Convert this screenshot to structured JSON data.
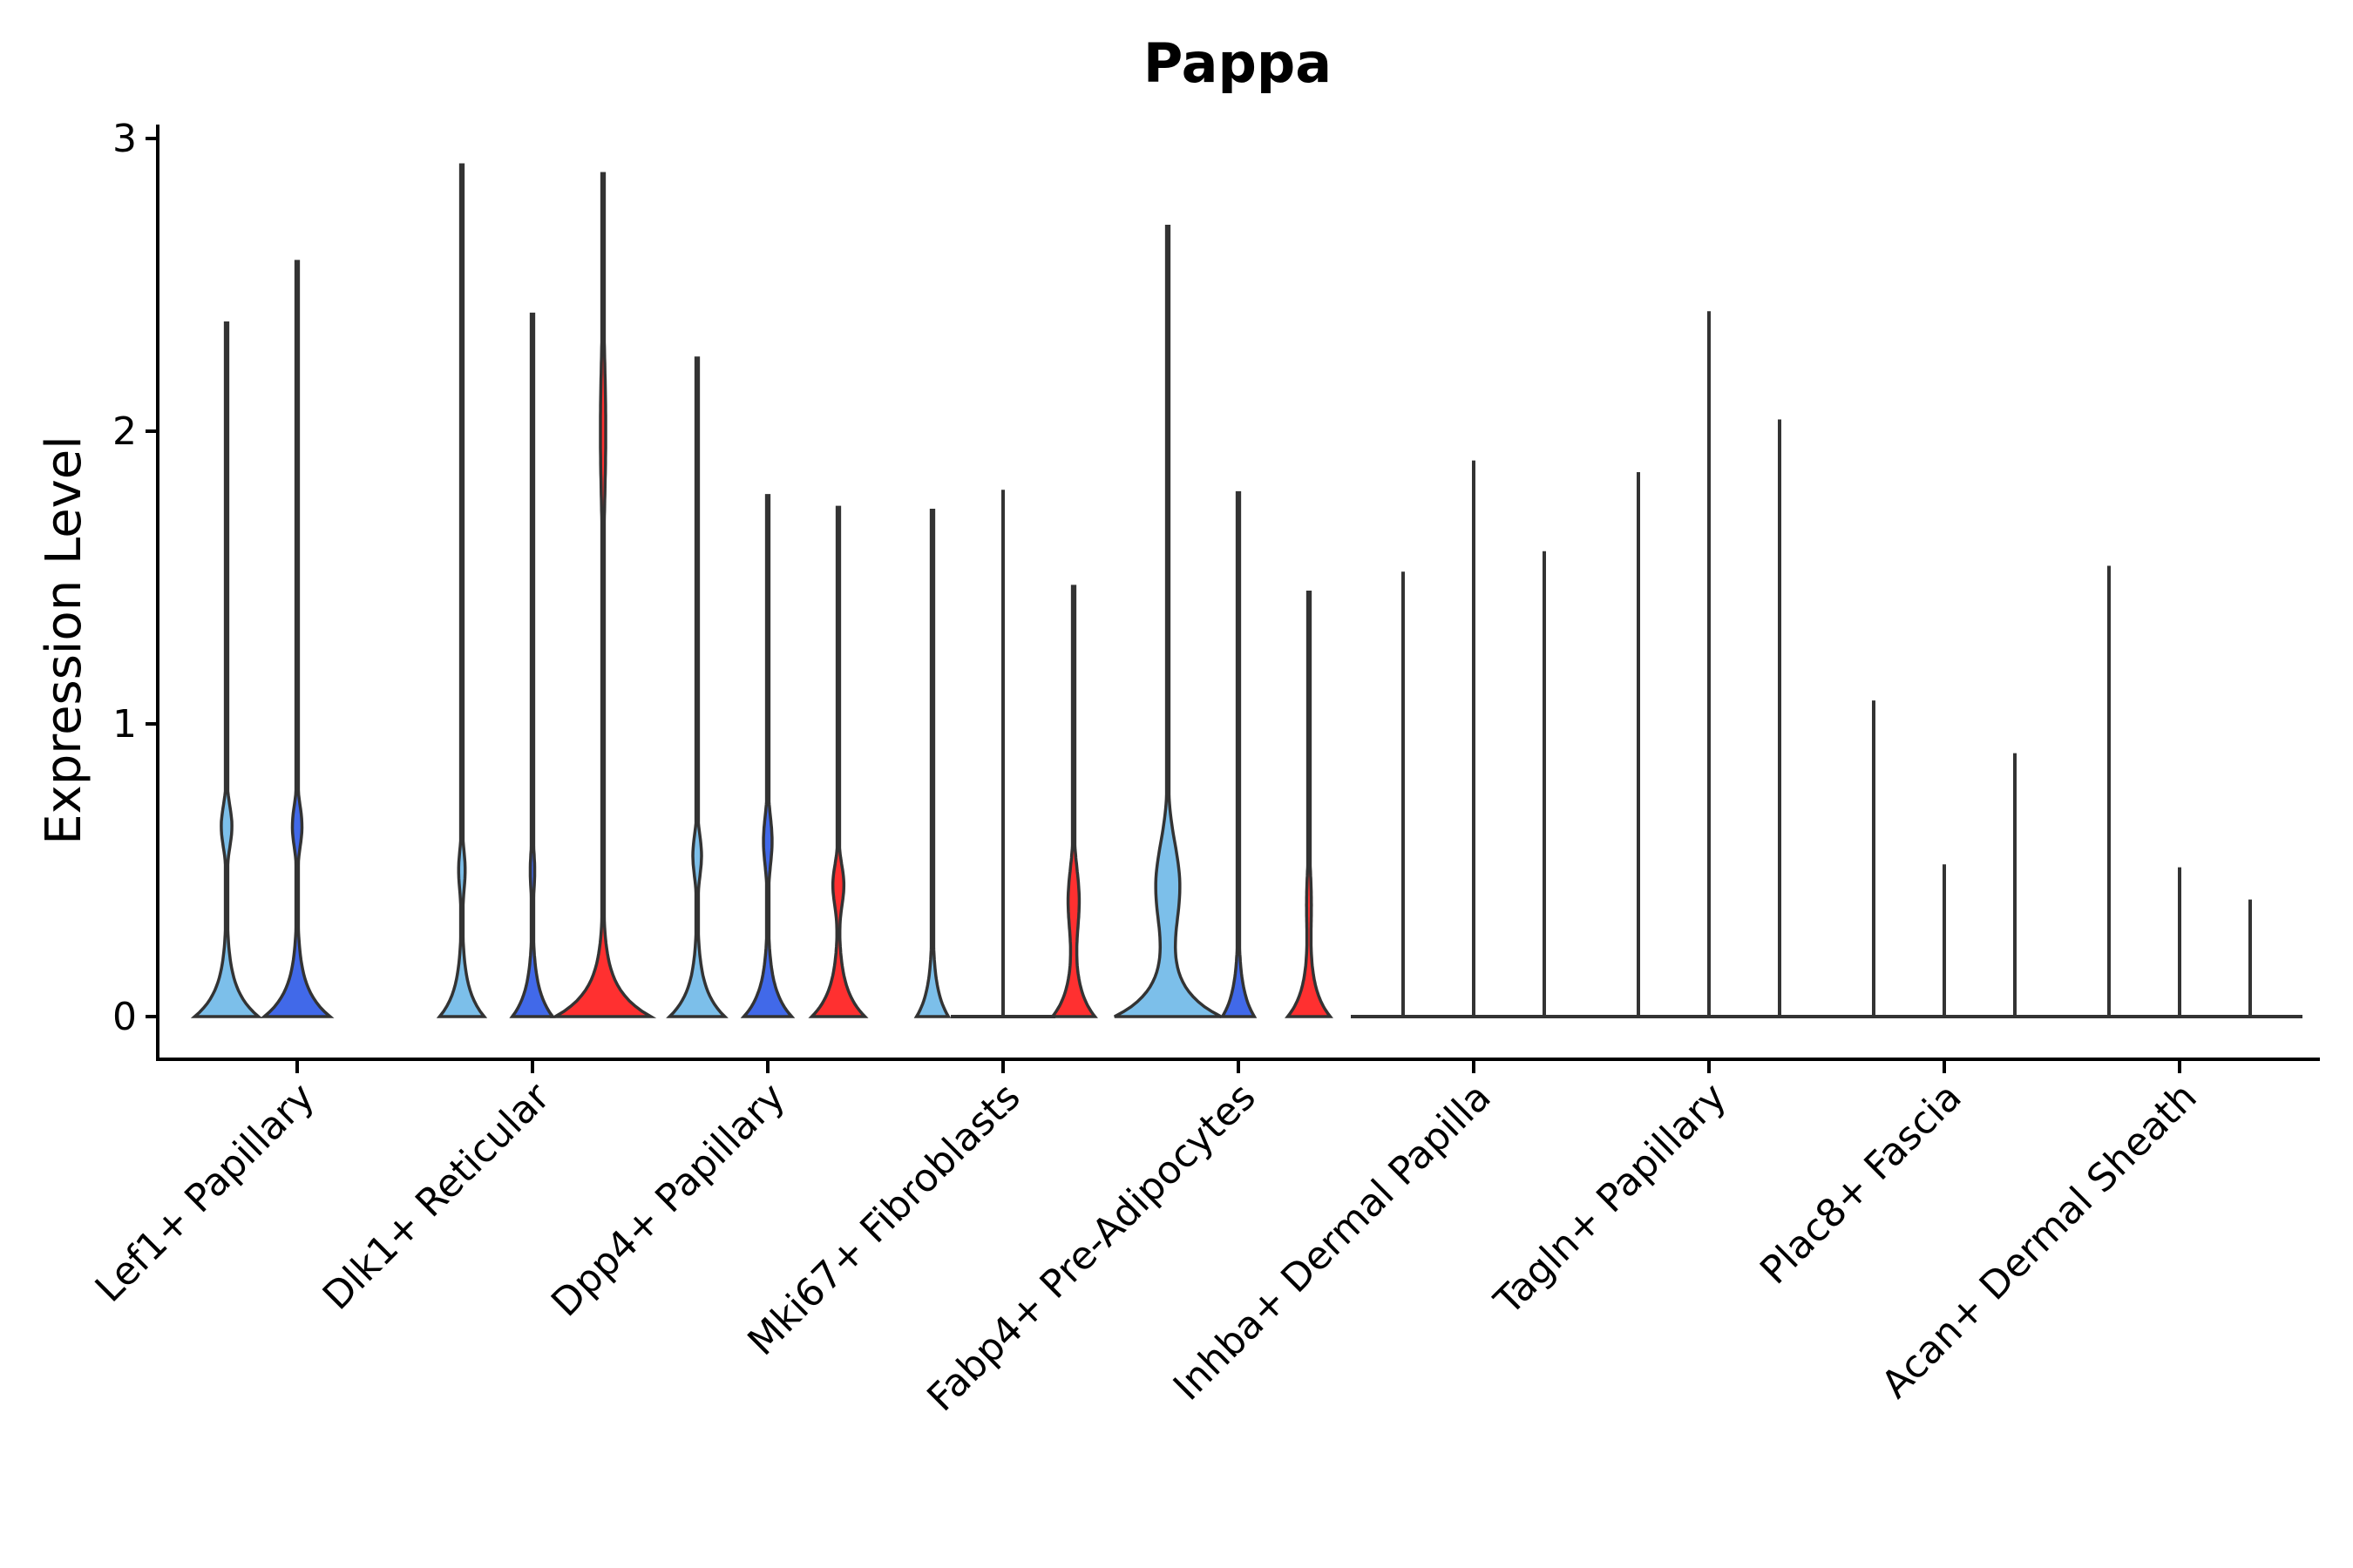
{
  "chart_data": {
    "type": "violin",
    "title": "Pappa",
    "xlabel": "",
    "ylabel": "Expression Level",
    "ylim": [
      -0.15,
      3.05
    ],
    "yticks": [
      0,
      1,
      2,
      3
    ],
    "categories": [
      "Lef1+ Papillary",
      "Dlk1+ Reticular",
      "Dpp4+ Papillary",
      "Mki67+ Fibroblasts",
      "Fabp4+ Pre-Adipocytes",
      "Inhba+ Dermal Papilla",
      "Tagln+ Papillary",
      "Plac8+ Fascia",
      "Acan+ Dermal Sheath"
    ],
    "series_colors": [
      "#7CBFEA",
      "#4169E9",
      "#FF3030"
    ],
    "violins": [
      {
        "category": 0,
        "series": 0,
        "max": 2.37,
        "width": 0.6,
        "bumps": [
          {
            "y": 0.65,
            "w": 0.1,
            "s": 0.1
          }
        ]
      },
      {
        "category": 0,
        "series": 1,
        "max": 2.58,
        "width": 0.62,
        "bumps": [
          {
            "y": 0.65,
            "w": 0.09,
            "s": 0.1
          }
        ]
      },
      {
        "category": 1,
        "series": 0,
        "max": 2.91,
        "width": 0.42,
        "bumps": [
          {
            "y": 0.5,
            "w": 0.06,
            "s": 0.1
          }
        ]
      },
      {
        "category": 1,
        "series": 1,
        "max": 2.4,
        "width": 0.38,
        "bumps": [
          {
            "y": 0.5,
            "w": 0.04,
            "s": 0.1
          }
        ]
      },
      {
        "category": 1,
        "series": 2,
        "max": 2.88,
        "width": 0.9,
        "bumps": [
          {
            "y": 2.0,
            "w": 0.05,
            "s": 0.35
          }
        ]
      },
      {
        "category": 2,
        "series": 0,
        "max": 2.25,
        "width": 0.52,
        "bumps": [
          {
            "y": 0.55,
            "w": 0.08,
            "s": 0.1
          }
        ]
      },
      {
        "category": 2,
        "series": 1,
        "max": 1.78,
        "width": 0.45,
        "bumps": [
          {
            "y": 0.6,
            "w": 0.08,
            "s": 0.12
          }
        ]
      },
      {
        "category": 2,
        "series": 2,
        "max": 1.74,
        "width": 0.5,
        "bumps": [
          {
            "y": 0.45,
            "w": 0.1,
            "s": 0.1
          }
        ]
      },
      {
        "category": 3,
        "series": 0,
        "max": 1.73,
        "width": 0.3,
        "bumps": []
      },
      {
        "category": 3,
        "series": 1,
        "max": 1.8,
        "width": 0.0,
        "bumps": []
      },
      {
        "category": 3,
        "series": 2,
        "max": 1.47,
        "width": 0.4,
        "bumps": [
          {
            "y": 0.4,
            "w": 0.1,
            "s": 0.15
          }
        ]
      },
      {
        "category": 4,
        "series": 0,
        "max": 2.7,
        "width": 1.0,
        "bumps": [
          {
            "y": 0.45,
            "w": 0.22,
            "s": 0.2
          }
        ]
      },
      {
        "category": 4,
        "series": 1,
        "max": 1.79,
        "width": 0.3,
        "bumps": []
      },
      {
        "category": 4,
        "series": 2,
        "max": 1.45,
        "width": 0.4,
        "bumps": [
          {
            "y": 0.4,
            "w": 0.04,
            "s": 0.15
          }
        ]
      },
      {
        "category": 5,
        "series": 0,
        "max": 1.52,
        "width": 0.0,
        "bumps": []
      },
      {
        "category": 5,
        "series": 1,
        "max": 1.9,
        "width": 0.0,
        "bumps": []
      },
      {
        "category": 5,
        "series": 2,
        "max": 1.59,
        "width": 0.0,
        "bumps": []
      },
      {
        "category": 6,
        "series": 0,
        "max": 1.86,
        "width": 0.0,
        "bumps": []
      },
      {
        "category": 6,
        "series": 1,
        "max": 2.41,
        "width": 0.0,
        "bumps": []
      },
      {
        "category": 6,
        "series": 2,
        "max": 2.04,
        "width": 0.0,
        "bumps": []
      },
      {
        "category": 7,
        "series": 0,
        "max": 1.08,
        "width": 0.0,
        "bumps": []
      },
      {
        "category": 7,
        "series": 1,
        "max": 0.52,
        "width": 0.0,
        "bumps": []
      },
      {
        "category": 7,
        "series": 2,
        "max": 0.9,
        "width": 0.0,
        "bumps": []
      },
      {
        "category": 8,
        "series": 0,
        "max": 1.54,
        "width": 0.0,
        "bumps": []
      },
      {
        "category": 8,
        "series": 1,
        "max": 0.51,
        "width": 0.0,
        "bumps": []
      },
      {
        "category": 8,
        "series": 2,
        "max": 0.4,
        "width": 0.0,
        "bumps": []
      }
    ],
    "grid": false,
    "legend": "none"
  }
}
